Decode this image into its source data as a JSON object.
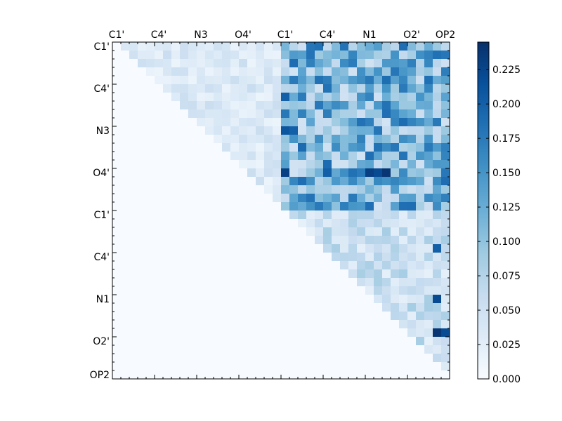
{
  "chart_data": {
    "type": "heatmap",
    "title": "",
    "xlabel": "",
    "ylabel": "",
    "matrix_size": 40,
    "x_tick_labels": [
      {
        "index": 0,
        "label": "C1'"
      },
      {
        "index": 5,
        "label": "C4'"
      },
      {
        "index": 10,
        "label": "N3"
      },
      {
        "index": 15,
        "label": "O4'"
      },
      {
        "index": 20,
        "label": "C1'"
      },
      {
        "index": 25,
        "label": "C4'"
      },
      {
        "index": 30,
        "label": "N1"
      },
      {
        "index": 35,
        "label": "O2'"
      },
      {
        "index": 39,
        "label": "OP2"
      }
    ],
    "y_tick_labels": [
      {
        "index": 0,
        "label": "C1'"
      },
      {
        "index": 5,
        "label": "C4'"
      },
      {
        "index": 10,
        "label": "N3"
      },
      {
        "index": 15,
        "label": "O4'"
      },
      {
        "index": 20,
        "label": "C1'"
      },
      {
        "index": 25,
        "label": "C4'"
      },
      {
        "index": 30,
        "label": "N1"
      },
      {
        "index": 35,
        "label": "O2'"
      },
      {
        "index": 39,
        "label": "OP2"
      }
    ],
    "colorbar": {
      "cmap": "Blues",
      "min": 0.0,
      "max": 0.245,
      "ticks": [
        0.0,
        0.025,
        0.05,
        0.075,
        0.1,
        0.125,
        0.15,
        0.175,
        0.2,
        0.225
      ],
      "tick_labels": [
        "0.000",
        "0.025",
        "0.050",
        "0.075",
        "0.100",
        "0.125",
        "0.150",
        "0.175",
        "0.200",
        "0.225"
      ]
    },
    "block_values": [
      {
        "rows": [
          0,
          19
        ],
        "cols": [
          20,
          39
        ],
        "value": 0.13
      },
      {
        "rows": [
          20,
          39
        ],
        "cols": [
          20,
          39
        ],
        "value": 0.06
      },
      {
        "rows": [
          0,
          19
        ],
        "cols": [
          0,
          19
        ],
        "value": 0.04
      }
    ],
    "triangle": "upper",
    "noise_seed": 7,
    "hot_cells": [
      [
        15,
        20,
        0.23
      ],
      [
        15,
        30,
        0.23
      ],
      [
        15,
        31,
        0.22
      ],
      [
        15,
        32,
        0.24
      ],
      [
        15,
        25,
        0.2
      ],
      [
        6,
        20,
        0.2
      ],
      [
        10,
        20,
        0.21
      ],
      [
        10,
        21,
        0.2
      ],
      [
        12,
        22,
        0.19
      ],
      [
        30,
        38,
        0.22
      ],
      [
        34,
        38,
        0.24
      ],
      [
        34,
        39,
        0.22
      ],
      [
        24,
        38,
        0.2
      ]
    ]
  }
}
